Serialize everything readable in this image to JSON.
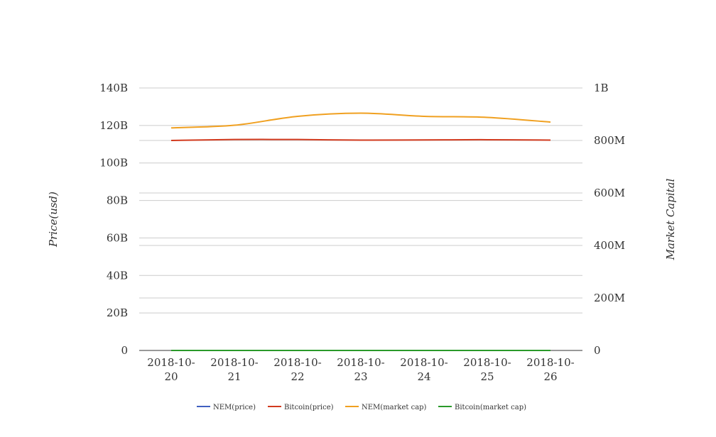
{
  "chart_data": {
    "type": "line",
    "title": "",
    "categories": [
      "2018-10-20",
      "2018-10-21",
      "2018-10-22",
      "2018-10-23",
      "2018-10-24",
      "2018-10-25",
      "2018-10-26"
    ],
    "category_labels": [
      [
        "2018-10-",
        "20"
      ],
      [
        "2018-10-",
        "21"
      ],
      [
        "2018-10-",
        "22"
      ],
      [
        "2018-10-",
        "23"
      ],
      [
        "2018-10-",
        "24"
      ],
      [
        "2018-10-",
        "25"
      ],
      [
        "2018-10-",
        "26"
      ]
    ],
    "y_left": {
      "label": "Price(usd)",
      "range": [
        0,
        140000000000
      ],
      "ticks": [
        0,
        20000000000,
        40000000000,
        60000000000,
        80000000000,
        100000000000,
        120000000000,
        140000000000
      ],
      "tick_labels": [
        "0",
        "20B",
        "40B",
        "60B",
        "80B",
        "100B",
        "120B",
        "140B"
      ]
    },
    "y_right": {
      "label": "Market Capital",
      "range": [
        0,
        1000000000
      ],
      "ticks": [
        0,
        200000000,
        400000000,
        600000000,
        800000000,
        1000000000
      ],
      "tick_labels": [
        "0",
        "200M",
        "400M",
        "600M",
        "800M",
        "1B"
      ]
    },
    "series": [
      {
        "name": "NEM(price)",
        "axis": "left",
        "color": "#4060c0",
        "values": [
          0.1,
          0.1,
          0.1,
          0.1,
          0.1,
          0.1,
          0.1
        ]
      },
      {
        "name": "Bitcoin(price)",
        "axis": "left",
        "color": "#d23a1e",
        "values": [
          112000000000,
          112500000000,
          112500000000,
          112200000000,
          112300000000,
          112400000000,
          112200000000
        ]
      },
      {
        "name": "NEM(market cap)",
        "axis": "right",
        "color": "#f0a020",
        "values": [
          848000000,
          858000000,
          892000000,
          904000000,
          892000000,
          888000000,
          870000000
        ]
      },
      {
        "name": "Bitcoin(market cap)",
        "axis": "right",
        "color": "#2a9a2a",
        "values": [
          1,
          1,
          1,
          1,
          1,
          1,
          1
        ]
      }
    ],
    "grid": true,
    "legend_position": "bottom"
  }
}
